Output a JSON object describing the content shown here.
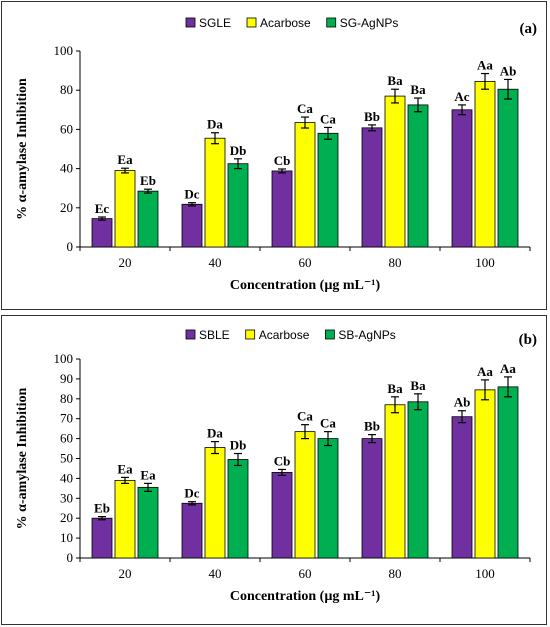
{
  "chart_data": [
    {
      "type": "bar",
      "panel_label": "(a)",
      "categories": [
        "20",
        "40",
        "60",
        "80",
        "100"
      ],
      "series": [
        {
          "name": "SGLE",
          "color": "#7030A0",
          "values": [
            14.5,
            21.8,
            38.8,
            60.8,
            70.0
          ],
          "errors": [
            0.8,
            0.8,
            1.0,
            1.5,
            2.5
          ],
          "letters": [
            "Ec",
            "Dc",
            "Cb",
            "Bb",
            "Ac"
          ]
        },
        {
          "name": "Acarbose",
          "color": "#FFFF00",
          "values": [
            39.0,
            55.5,
            63.5,
            77.0,
            84.5
          ],
          "errors": [
            1.2,
            2.8,
            2.8,
            3.5,
            4.0
          ],
          "letters": [
            "Ea",
            "Da",
            "Ca",
            "Ba",
            "Aa"
          ]
        },
        {
          "name": "SG-AgNPs",
          "color": "#00B050",
          "values": [
            28.5,
            42.5,
            58.0,
            72.5,
            80.5
          ],
          "errors": [
            1.0,
            2.5,
            3.0,
            3.5,
            5.0
          ],
          "letters": [
            "Eb",
            "Db",
            "Ca",
            "Ba",
            "Ab"
          ]
        }
      ],
      "xlabel": "Concentration  (µg mL⁻¹)",
      "ylabel": "% α-amylase Inhibition",
      "ylim": [
        0,
        100
      ],
      "yticks": [
        0,
        20,
        40,
        60,
        80,
        100
      ],
      "legend_position": "top-center",
      "grid": false
    },
    {
      "type": "bar",
      "panel_label": "(b)",
      "categories": [
        "20",
        "40",
        "60",
        "80",
        "100"
      ],
      "series": [
        {
          "name": "SBLE",
          "color": "#7030A0",
          "values": [
            20.0,
            27.5,
            43.0,
            60.0,
            71.0
          ],
          "errors": [
            0.8,
            0.8,
            1.5,
            2.0,
            3.0
          ],
          "letters": [
            "Eb",
            "Dc",
            "Cb",
            "Bb",
            "Ab"
          ]
        },
        {
          "name": "Acarbose",
          "color": "#FFFF00",
          "values": [
            39.0,
            55.5,
            63.5,
            77.0,
            84.5
          ],
          "errors": [
            1.5,
            3.0,
            3.5,
            4.0,
            5.0
          ],
          "letters": [
            "Ea",
            "Da",
            "Ca",
            "Ba",
            "Aa"
          ]
        },
        {
          "name": "SB-AgNPs",
          "color": "#00B050",
          "values": [
            35.5,
            49.5,
            60.0,
            78.5,
            86.0
          ],
          "errors": [
            2.0,
            3.0,
            3.5,
            4.0,
            5.0
          ],
          "letters": [
            "Ea",
            "Db",
            "Ca",
            "Ba",
            "Aa"
          ]
        }
      ],
      "xlabel": "Concentration  (µg mL⁻¹)",
      "ylabel": "% α-amylase Inhibition",
      "ylim": [
        0,
        100
      ],
      "yticks": [
        0,
        10,
        20,
        30,
        40,
        50,
        60,
        70,
        80,
        90,
        100
      ],
      "legend_position": "top-center",
      "grid": false
    }
  ]
}
